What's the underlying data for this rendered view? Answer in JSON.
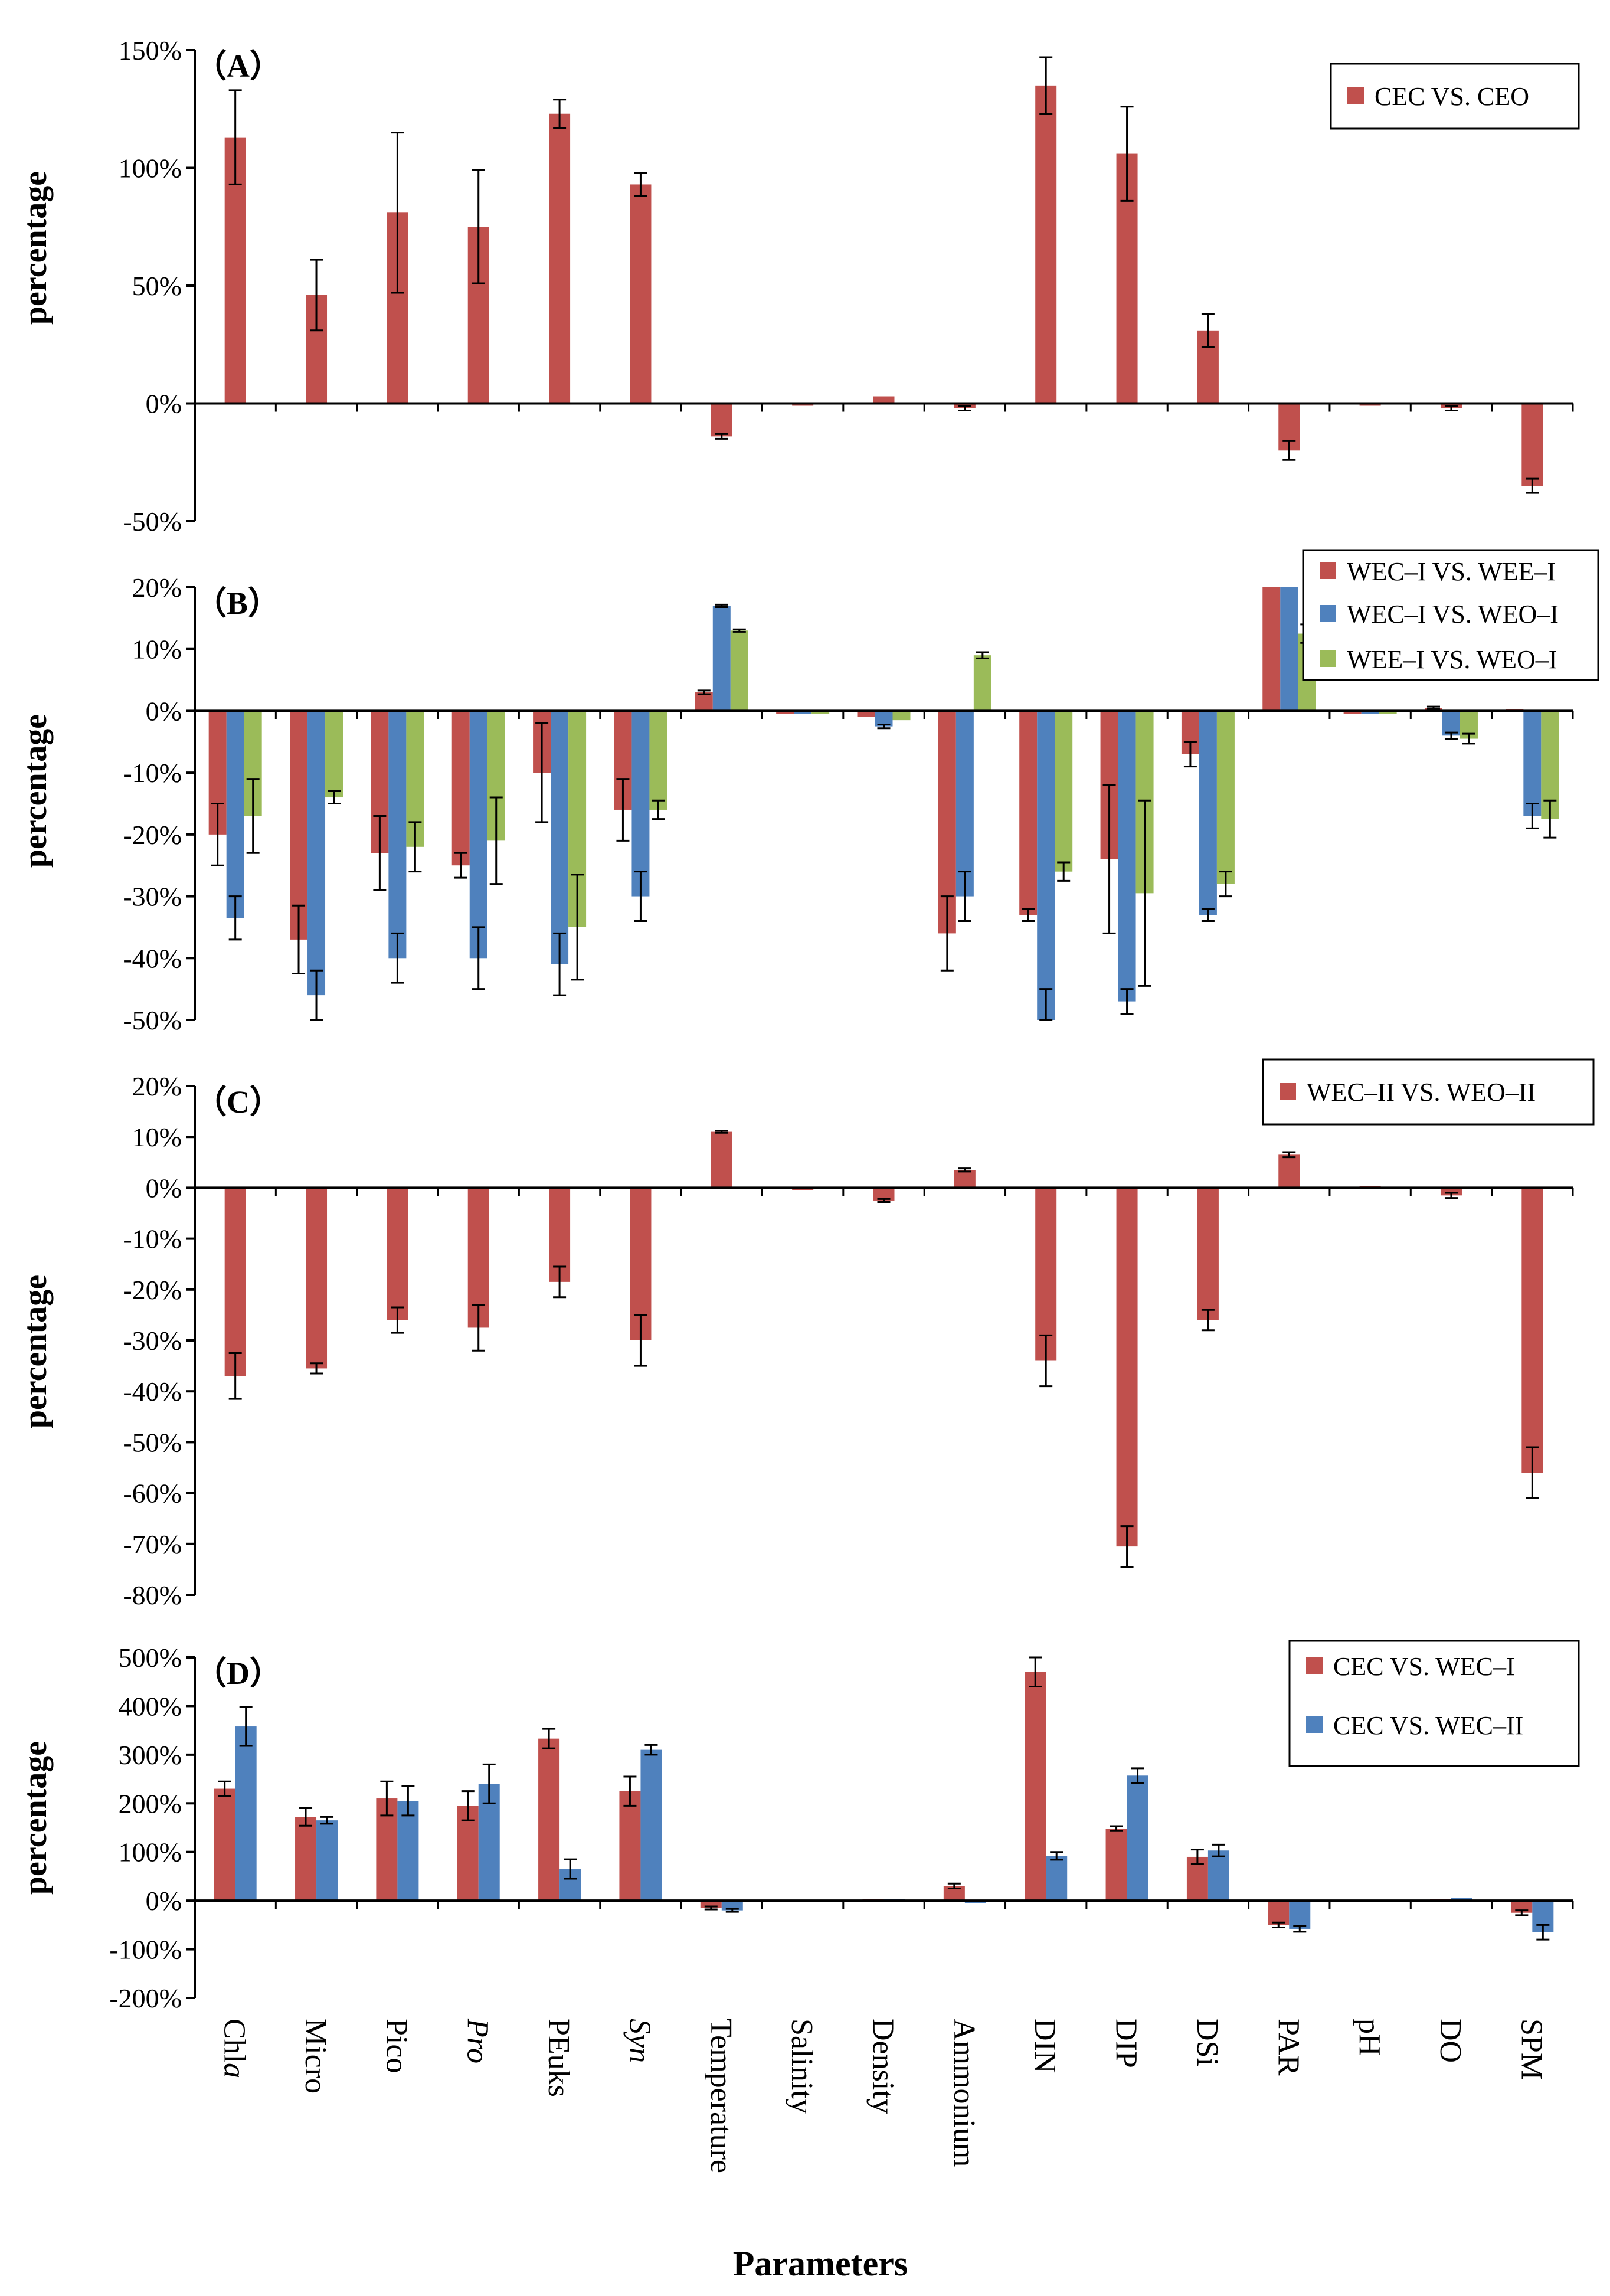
{
  "chart_data": {
    "type": "bar",
    "xlabel": "Parameters",
    "categories": [
      "Chla",
      "Micro",
      "Pico",
      "Pro",
      "PEuks",
      "Syn",
      "Temperature",
      "Salinity",
      "Density",
      "Ammonium",
      "DIN",
      "DIP",
      "DSi",
      "PAR",
      "pH",
      "DO",
      "SPM"
    ],
    "category_labels": [
      {
        "plain": "Chl",
        "italic": "a"
      },
      {
        "plain": "Micro",
        "italic": ""
      },
      {
        "plain": "Pico",
        "italic": ""
      },
      {
        "plain": "",
        "italic": "Pro"
      },
      {
        "plain": "PEuks",
        "italic": ""
      },
      {
        "plain": "",
        "italic": "Syn"
      },
      {
        "plain": "Temperature",
        "italic": ""
      },
      {
        "plain": "Salinity",
        "italic": ""
      },
      {
        "plain": "Density",
        "italic": ""
      },
      {
        "plain": "Ammonium",
        "italic": ""
      },
      {
        "plain": "DIN",
        "italic": ""
      },
      {
        "plain": "DIP",
        "italic": ""
      },
      {
        "plain": "DSi",
        "italic": ""
      },
      {
        "plain": "PAR",
        "italic": ""
      },
      {
        "plain": "pH",
        "italic": ""
      },
      {
        "plain": "DO",
        "italic": ""
      },
      {
        "plain": "SPM",
        "italic": ""
      }
    ],
    "colors": {
      "red": "#C0504D",
      "blue": "#4F81BD",
      "green": "#9BBB59",
      "axis": "#000000"
    },
    "panels": [
      {
        "label": "（A）",
        "ylabel": "percentage",
        "ylim": [
          -50,
          150
        ],
        "yticks": [
          -50,
          0,
          50,
          100,
          150
        ],
        "tick_labels": [
          "-50%",
          "0%",
          "50%",
          "100%",
          "150%"
        ],
        "legend_position": "top-right",
        "series": [
          {
            "name": "CEC VS. CEO",
            "color": "red",
            "values": [
              113,
              46,
              81,
              75,
              123,
              93,
              -14,
              -1,
              3,
              -2,
              135,
              106,
              31,
              -20,
              -1,
              -2,
              -35
            ],
            "errors": [
              20,
              15,
              34,
              24,
              6,
              5,
              1,
              0,
              0,
              1,
              12,
              20,
              7,
              4,
              0,
              1,
              3
            ]
          }
        ]
      },
      {
        "label": "（B）",
        "ylabel": "percentage",
        "ylim": [
          -50,
          20
        ],
        "yticks": [
          -50,
          -40,
          -30,
          -20,
          -10,
          0,
          10,
          20
        ],
        "tick_labels": [
          "-50%",
          "-40%",
          "-30%",
          "-20%",
          "-10%",
          "0%",
          "10%",
          "20%"
        ],
        "legend_position": "top-right",
        "series": [
          {
            "name": "WEC–I VS. WEE–I",
            "color": "red",
            "values": [
              -20,
              -37,
              -23,
              -25,
              -10,
              -16,
              3,
              -0.5,
              -1,
              -36,
              -33,
              -24,
              -7,
              20,
              -0.5,
              0.5,
              0.3
            ],
            "errors": [
              5,
              5.5,
              6,
              2,
              8,
              5,
              0.3,
              0,
              0,
              6,
              1,
              12,
              2,
              0,
              0,
              0.2,
              0
            ],
            "clipped_top": [
              false,
              false,
              false,
              false,
              false,
              false,
              false,
              false,
              false,
              false,
              false,
              false,
              false,
              true,
              false,
              false,
              false
            ]
          },
          {
            "name": "WEC–I VS. WEO–I",
            "color": "blue",
            "values": [
              -33.5,
              -46,
              -40,
              -40,
              -41,
              -30,
              17,
              -0.5,
              -2.5,
              -30,
              -53,
              -47,
              -33,
              20,
              -0.5,
              -4,
              -17
            ],
            "errors": [
              3.5,
              4,
              4,
              5,
              5,
              4,
              0.2,
              0,
              0.3,
              4,
              8,
              2,
              1,
              0,
              0,
              0.5,
              2
            ],
            "clipped_top": [
              false,
              false,
              false,
              false,
              false,
              false,
              false,
              false,
              false,
              false,
              false,
              false,
              false,
              true,
              false,
              false,
              false
            ]
          },
          {
            "name": "WEE–I VS. WEO–I",
            "color": "green",
            "values": [
              -17,
              -14,
              -22,
              -21,
              -35,
              -16,
              13,
              -0.5,
              -1.5,
              9,
              -26,
              -29.5,
              -28,
              12.5,
              -0.5,
              -4.5,
              -17.5
            ],
            "errors": [
              6,
              1,
              4,
              7,
              8.5,
              1.5,
              0.2,
              0,
              0,
              0.5,
              1.5,
              15,
              2,
              1.5,
              0,
              0.8,
              3
            ],
            "clipped_top": [
              false,
              false,
              false,
              false,
              false,
              false,
              false,
              false,
              false,
              false,
              false,
              false,
              false,
              false,
              false,
              false,
              false
            ]
          }
        ]
      },
      {
        "label": "（C）",
        "ylabel": "percentage",
        "ylim": [
          -80,
          20
        ],
        "yticks": [
          -80,
          -70,
          -60,
          -50,
          -40,
          -30,
          -20,
          -10,
          0,
          10,
          20
        ],
        "tick_labels": [
          "-80%",
          "-70%",
          "-60%",
          "-50%",
          "-40%",
          "-30%",
          "-20%",
          "-10%",
          "0%",
          "10%",
          "20%"
        ],
        "legend_position": "top-right",
        "series": [
          {
            "name": "WEC–II VS. WEO–II",
            "color": "red",
            "values": [
              -37,
              -35.5,
              -26,
              -27.5,
              -18.5,
              -30,
              11,
              -0.5,
              -2.5,
              3.5,
              -34,
              -70.5,
              -26,
              6.5,
              0.3,
              -1.5,
              -56
            ],
            "errors": [
              4.5,
              1,
              2.5,
              4.5,
              3,
              5,
              0.2,
              0,
              0.3,
              0.3,
              5,
              4,
              2,
              0.5,
              0,
              0.5,
              5
            ]
          }
        ]
      },
      {
        "label": "（D）",
        "ylabel": "percentage",
        "ylim": [
          -200,
          500
        ],
        "yticks": [
          -200,
          -100,
          0,
          100,
          200,
          300,
          400,
          500
        ],
        "tick_labels": [
          "-200%",
          "-100%",
          "0%",
          "100%",
          "200%",
          "300%",
          "400%",
          "500%"
        ],
        "legend_position": "top-right",
        "series": [
          {
            "name": "CEC VS. WEC–I",
            "color": "red",
            "values": [
              230,
              172,
              210,
              195,
              333,
              225,
              -15,
              0,
              3,
              30,
              470,
              148,
              90,
              -50,
              0,
              3,
              -25
            ],
            "errors": [
              15,
              18,
              35,
              30,
              20,
              30,
              3,
              0,
              0,
              5,
              30,
              5,
              15,
              5,
              0,
              0,
              5
            ]
          },
          {
            "name": "CEC VS. WEC–II",
            "color": "blue",
            "values": [
              358,
              165,
              205,
              240,
              65,
              310,
              -20,
              0,
              3,
              -5,
              92,
              257,
              103,
              -58,
              0,
              6,
              -65
            ],
            "errors": [
              40,
              7,
              30,
              40,
              20,
              10,
              3,
              0,
              0,
              0,
              8,
              15,
              12,
              6,
              0,
              0,
              15
            ]
          }
        ]
      }
    ]
  }
}
